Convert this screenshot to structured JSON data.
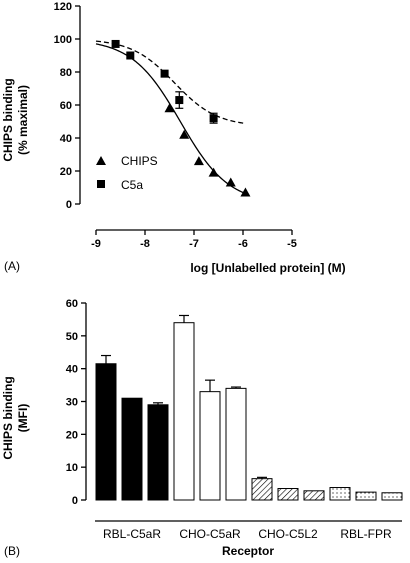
{
  "chart_data": [
    {
      "type": "scatter",
      "panel_label": "(A)",
      "xlabel": "log [Unlabelled protein] (M)",
      "ylabel_line1": "CHIPS binding",
      "ylabel_line2": "(% maximal)",
      "xlim": [
        -9,
        -5
      ],
      "ylim": [
        0,
        120
      ],
      "xticks": [
        "-9",
        "-8",
        "-7",
        "-6",
        "-5"
      ],
      "yticks": [
        "0",
        "20",
        "40",
        "60",
        "80",
        "100",
        "120"
      ],
      "series": [
        {
          "name": "CHIPS",
          "marker": "triangle",
          "line": "solid",
          "x": [
            -7.5,
            -7.2,
            -6.9,
            -6.6,
            -6.25,
            -5.95
          ],
          "y": [
            58,
            42,
            26,
            19,
            13,
            7
          ],
          "err": [
            0,
            0,
            0,
            0,
            0,
            0
          ],
          "fit": {
            "top": 100,
            "bottom": 0,
            "logec50": -7.28,
            "slope": 0.88
          }
        },
        {
          "name": "C5a",
          "marker": "square",
          "line": "dashed",
          "x": [
            -8.6,
            -8.3,
            -7.6,
            -7.3,
            -6.6
          ],
          "y": [
            97,
            90,
            79,
            63,
            52
          ],
          "err": [
            0,
            0,
            0,
            5,
            3
          ],
          "fit": {
            "top": 100,
            "bottom": 47,
            "logec50": -7.4,
            "slope": 1.0
          }
        }
      ]
    },
    {
      "type": "bar",
      "panel_label": "(B)",
      "xlabel": "Receptor",
      "ylabel_line1": "CHIPS binding",
      "ylabel_line2": "(MFI)",
      "ylim": [
        0,
        60
      ],
      "yticks": [
        "0",
        "10",
        "20",
        "30",
        "40",
        "50",
        "60"
      ],
      "groups": [
        {
          "name": "RBL-C5aR",
          "pattern": "solid",
          "values": [
            41.5,
            31,
            29
          ],
          "err": [
            2.5,
            0,
            0.6
          ]
        },
        {
          "name": "CHO-C5aR",
          "pattern": "open",
          "values": [
            54,
            33,
            34
          ],
          "err": [
            2.2,
            3.5,
            0.4
          ]
        },
        {
          "name": "CHO-C5L2",
          "pattern": "hatched",
          "values": [
            6.5,
            3.5,
            2.8
          ],
          "err": [
            0.4,
            0,
            0
          ]
        },
        {
          "name": "RBL-FPR",
          "pattern": "dotted",
          "values": [
            3.8,
            2.4,
            2.2
          ],
          "err": [
            0,
            0,
            0
          ]
        }
      ]
    }
  ]
}
